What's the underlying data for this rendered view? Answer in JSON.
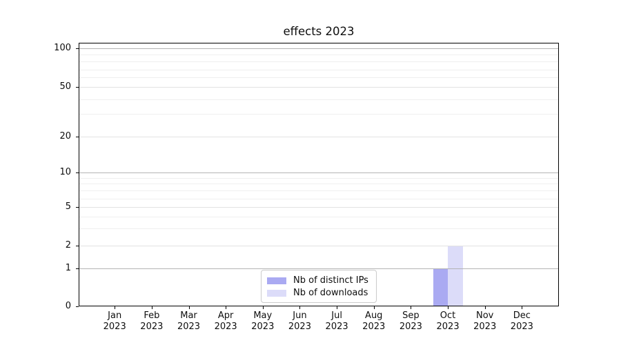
{
  "chart": {
    "title": "effects 2023"
  },
  "chart_data": {
    "type": "bar",
    "title": "effects 2023",
    "categories": [
      "Jan 2023",
      "Feb 2023",
      "Mar 2023",
      "Apr 2023",
      "May 2023",
      "Jun 2023",
      "Jul 2023",
      "Aug 2023",
      "Sep 2023",
      "Oct 2023",
      "Nov 2023",
      "Dec 2023"
    ],
    "series": [
      {
        "name": "Nb of distinct IPs",
        "color": "#aaaaf2",
        "values": [
          0,
          0,
          0,
          0,
          0,
          0,
          0,
          0,
          0,
          1,
          0,
          0
        ]
      },
      {
        "name": "Nb of downloads",
        "color": "#dcdcf9",
        "values": [
          0,
          0,
          0,
          0,
          0,
          0,
          0,
          0,
          0,
          2,
          0,
          0
        ]
      }
    ],
    "xlabel": "",
    "ylabel": "",
    "yscale": "symlog",
    "y_ticks": [
      0,
      1,
      2,
      5,
      10,
      20,
      50,
      100
    ],
    "y_minor_ticks": [
      3,
      4,
      6,
      7,
      8,
      9,
      30,
      40,
      60,
      70,
      80,
      90
    ],
    "ylim": [
      0,
      115
    ],
    "grid": true,
    "legend_position": "lower center",
    "colors": {
      "grid_major_power10": "#b3b3b3",
      "grid_major_other": "#e2e2e2",
      "grid_minor": "#efefef",
      "axis": "#000000"
    }
  }
}
